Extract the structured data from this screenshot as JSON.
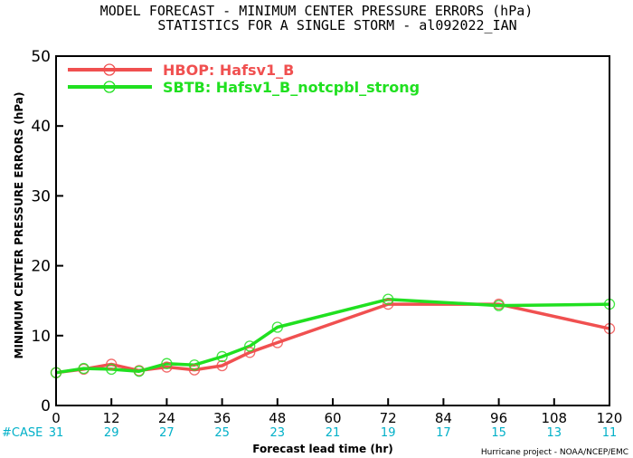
{
  "chart_data": {
    "type": "line",
    "title": "MODEL FORECAST - MINIMUM CENTER PRESSURE ERRORS (hPa)",
    "subtitle": "STATISTICS FOR A SINGLE STORM - al092022_IAN",
    "xlabel": "Forecast lead time (hr)",
    "ylabel": "MINIMUM CENTER PRESSURE ERRORS (hPa)",
    "xlim": [
      0,
      120
    ],
    "ylim": [
      0,
      50
    ],
    "x_ticks": [
      0,
      12,
      24,
      36,
      48,
      60,
      72,
      84,
      96,
      108,
      120
    ],
    "y_ticks": [
      0,
      10,
      20,
      30,
      40,
      50
    ],
    "grid": false,
    "legend_position": "top-left",
    "series": [
      {
        "name": "HBOP: Hafsv1_B",
        "color": "#f05050",
        "x": [
          0,
          6,
          12,
          18,
          24,
          30,
          36,
          42,
          48,
          72,
          96,
          120
        ],
        "y": [
          4.7,
          5.2,
          5.9,
          5.0,
          5.5,
          5.1,
          5.7,
          7.6,
          9.0,
          14.5,
          14.5,
          11.0
        ]
      },
      {
        "name": "SBTB: Hafsv1_B_notcpbl_strong",
        "color": "#20e020",
        "x": [
          0,
          6,
          12,
          18,
          24,
          30,
          36,
          42,
          48,
          72,
          96,
          120
        ],
        "y": [
          4.7,
          5.3,
          5.2,
          4.9,
          6.0,
          5.8,
          7.0,
          8.5,
          11.2,
          15.2,
          14.3,
          14.5
        ]
      }
    ],
    "case_label": "#CASE",
    "case_counts": [
      31,
      29,
      27,
      25,
      23,
      21,
      19,
      17,
      15,
      13,
      11
    ],
    "case_color": "#00b0c8",
    "credit": "Hurricane project - NOAA/NCEP/EMC"
  }
}
